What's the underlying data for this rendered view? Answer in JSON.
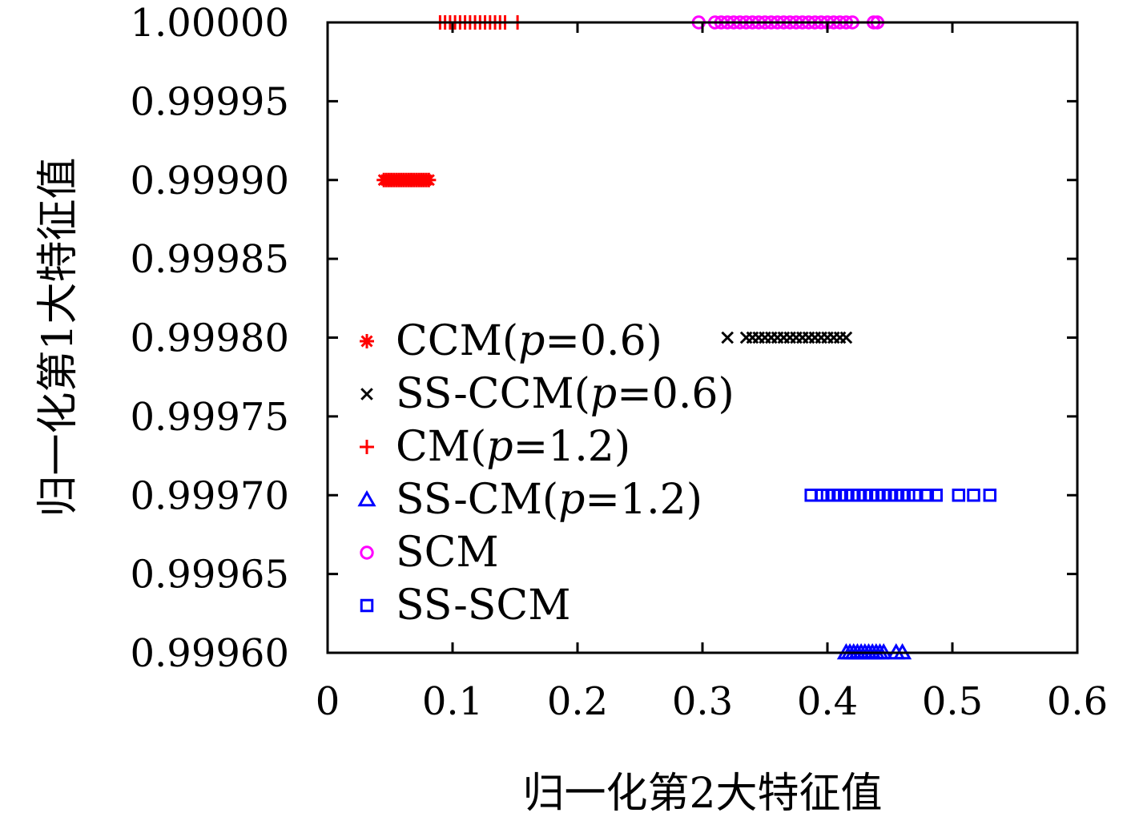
{
  "chart_data": {
    "type": "scatter",
    "xlabel": "归一化第2大特征值",
    "ylabel": "归一化第1大特征值",
    "xlim": [
      0,
      0.6
    ],
    "ylim": [
      0.9996,
      1.0
    ],
    "xticks": [
      0,
      0.1,
      0.2,
      0.3,
      0.4,
      0.5,
      0.6
    ],
    "xtick_labels": [
      "0",
      "0.1",
      "0.2",
      "0.3",
      "0.4",
      "0.5",
      "0.6"
    ],
    "yticks": [
      0.9996,
      0.99965,
      0.9997,
      0.99975,
      0.9998,
      0.99985,
      0.9999,
      0.99995,
      1.0
    ],
    "ytick_labels": [
      "0.99960",
      "0.99965",
      "0.99970",
      "0.99975",
      "0.99980",
      "0.99985",
      "0.99990",
      "0.99995",
      "1.00000"
    ],
    "grid": false,
    "legend_position": "left",
    "series": [
      {
        "name": "CCM(p=0.6)",
        "name_prefix": "CCM(",
        "name_param": "p",
        "name_suffix": "=0.6)",
        "marker": "asterisk",
        "color": "#ff0000",
        "x": [
          0.045,
          0.047,
          0.049,
          0.051,
          0.053,
          0.055,
          0.057,
          0.059,
          0.061,
          0.063,
          0.065,
          0.067,
          0.069,
          0.071,
          0.073,
          0.075,
          0.077,
          0.079,
          0.081
        ],
        "y": [
          0.9999,
          0.9999,
          0.9999,
          0.9999,
          0.9999,
          0.9999,
          0.9999,
          0.9999,
          0.9999,
          0.9999,
          0.9999,
          0.9999,
          0.9999,
          0.9999,
          0.9999,
          0.9999,
          0.9999,
          0.9999,
          0.9999
        ]
      },
      {
        "name": "SS-CCM(p=0.6)",
        "name_prefix": "SS-CCM(",
        "name_param": "p",
        "name_suffix": "=0.6)",
        "marker": "cross",
        "color": "#000000",
        "x": [
          0.32,
          0.335,
          0.34,
          0.345,
          0.35,
          0.355,
          0.36,
          0.365,
          0.37,
          0.375,
          0.38,
          0.385,
          0.39,
          0.395,
          0.4,
          0.405,
          0.41,
          0.415
        ],
        "y": [
          0.9998,
          0.9998,
          0.9998,
          0.9998,
          0.9998,
          0.9998,
          0.9998,
          0.9998,
          0.9998,
          0.9998,
          0.9998,
          0.9998,
          0.9998,
          0.9998,
          0.9998,
          0.9998,
          0.9998,
          0.9998
        ]
      },
      {
        "name": "CM(p=1.2)",
        "name_prefix": "CM(",
        "name_param": "p",
        "name_suffix": "=1.2)",
        "marker": "plus",
        "color": "#ff0000",
        "x": [
          0.09,
          0.094,
          0.098,
          0.102,
          0.106,
          0.11,
          0.114,
          0.118,
          0.122,
          0.126,
          0.13,
          0.134,
          0.138,
          0.142,
          0.152
        ],
        "y": [
          1.0,
          1.0,
          1.0,
          1.0,
          1.0,
          1.0,
          1.0,
          1.0,
          1.0,
          1.0,
          1.0,
          1.0,
          1.0,
          1.0,
          1.0
        ]
      },
      {
        "name": "SS-CM(p=1.2)",
        "name_prefix": "SS-CM(",
        "name_param": "p",
        "name_suffix": "=1.2)",
        "marker": "triangle",
        "color": "#0000ff",
        "x": [
          0.415,
          0.418,
          0.421,
          0.424,
          0.427,
          0.43,
          0.433,
          0.436,
          0.439,
          0.442,
          0.445,
          0.455,
          0.46
        ],
        "y": [
          0.9996,
          0.9996,
          0.9996,
          0.9996,
          0.9996,
          0.9996,
          0.9996,
          0.9996,
          0.9996,
          0.9996,
          0.9996,
          0.9996,
          0.9996
        ]
      },
      {
        "name": "SCM",
        "marker": "circle",
        "color": "#ff00ff",
        "x": [
          0.297,
          0.31,
          0.315,
          0.32,
          0.325,
          0.33,
          0.335,
          0.34,
          0.345,
          0.35,
          0.355,
          0.36,
          0.365,
          0.37,
          0.375,
          0.38,
          0.385,
          0.39,
          0.395,
          0.4,
          0.405,
          0.41,
          0.415,
          0.42,
          0.437,
          0.44
        ],
        "y": [
          1.0,
          1.0,
          1.0,
          1.0,
          1.0,
          1.0,
          1.0,
          1.0,
          1.0,
          1.0,
          1.0,
          1.0,
          1.0,
          1.0,
          1.0,
          1.0,
          1.0,
          1.0,
          1.0,
          1.0,
          1.0,
          1.0,
          1.0,
          1.0,
          1.0,
          1.0
        ]
      },
      {
        "name": "SS-SCM",
        "marker": "square",
        "color": "#0000ff",
        "x": [
          0.387,
          0.395,
          0.4,
          0.405,
          0.41,
          0.415,
          0.42,
          0.425,
          0.43,
          0.435,
          0.44,
          0.445,
          0.45,
          0.455,
          0.46,
          0.465,
          0.47,
          0.48,
          0.487,
          0.505,
          0.517,
          0.53
        ],
        "y": [
          0.9997,
          0.9997,
          0.9997,
          0.9997,
          0.9997,
          0.9997,
          0.9997,
          0.9997,
          0.9997,
          0.9997,
          0.9997,
          0.9997,
          0.9997,
          0.9997,
          0.9997,
          0.9997,
          0.9997,
          0.9997,
          0.9997,
          0.9997,
          0.9997,
          0.9997
        ]
      }
    ]
  }
}
